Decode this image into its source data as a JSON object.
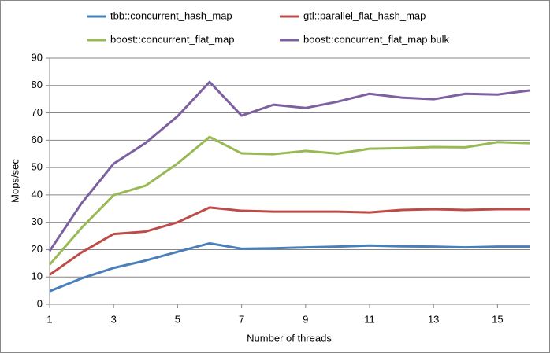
{
  "chart_data": {
    "type": "line",
    "x": [
      1,
      2,
      3,
      4,
      5,
      6,
      7,
      8,
      9,
      10,
      11,
      12,
      13,
      14,
      15,
      16
    ],
    "xlim": [
      1,
      16
    ],
    "xticks": [
      1,
      3,
      5,
      7,
      9,
      11,
      13,
      15
    ],
    "ylim": [
      0,
      90
    ],
    "yticks": [
      0,
      10,
      20,
      30,
      40,
      50,
      60,
      70,
      80,
      90
    ],
    "xlabel": "Number of threads",
    "ylabel": "Mops/sec",
    "series": [
      {
        "name": "tbb::concurrent_hash_map",
        "color": "#4a7ebb",
        "values": [
          4.8,
          9.5,
          13.3,
          16,
          19.2,
          22.3,
          20.3,
          20.5,
          20.8,
          21.1,
          21.5,
          21.2,
          21.1,
          20.8,
          21.1,
          21.1
        ]
      },
      {
        "name": "gtl::parallel_flat_hash_map",
        "color": "#be4b48",
        "values": [
          10.8,
          19,
          25.7,
          26.6,
          30,
          35.4,
          34.2,
          33.9,
          33.9,
          33.9,
          33.6,
          34.5,
          34.8,
          34.5,
          34.8,
          34.8
        ]
      },
      {
        "name": "boost::concurrent_flat_map",
        "color": "#98b954",
        "values": [
          14.5,
          28,
          39.9,
          43.4,
          51.5,
          61.2,
          55.2,
          54.9,
          56.1,
          55.1,
          56.9,
          57.1,
          57.5,
          57.4,
          59.3,
          58.9
        ]
      },
      {
        "name": "boost::concurrent_flat_map bulk",
        "color": "#7d60a0",
        "values": [
          19.5,
          37,
          51.4,
          59,
          68.8,
          81.3,
          69,
          73,
          71.8,
          74.1,
          77,
          75.6,
          75,
          77,
          76.7,
          78.2
        ]
      }
    ]
  }
}
